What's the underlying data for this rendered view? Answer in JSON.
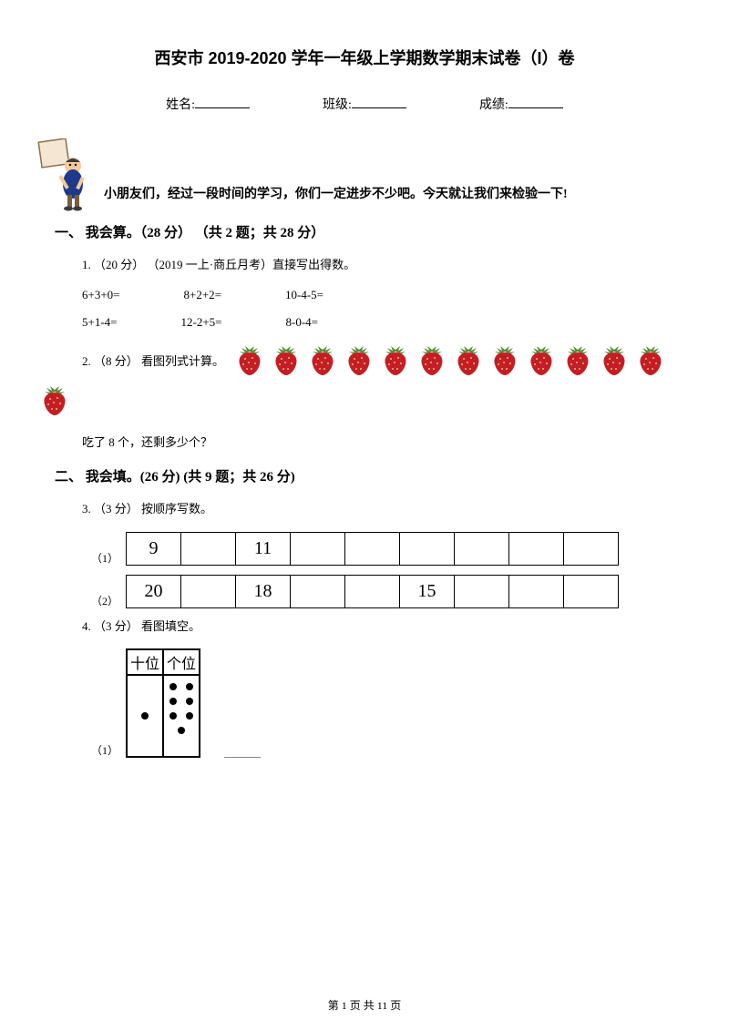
{
  "title": "西安市 2019-2020 学年一年级上学期数学期末试卷（I）卷",
  "info": {
    "name_label": "姓名:",
    "class_label": "班级:",
    "score_label": "成绩:"
  },
  "intro": "小朋友们，经过一段时间的学习，你们一定进步不少吧。今天就让我们来检验一下!",
  "section1": {
    "heading": "一、 我会算。（28 分） （共 2 题；共 28 分）",
    "q1": {
      "label": "1. （20 分） （2019 一上·商丘月考）直接写出得数。",
      "row1": [
        "6+3+0=",
        "8+2+2=",
        "10-4-5="
      ],
      "row2": [
        "5+1-4=",
        "12-2+5=",
        "8-0-4="
      ]
    },
    "q2": {
      "label": "2. （8 分）  看图列式计算。",
      "strawberry_count": 13,
      "sub": "吃了 8 个，还剩多少个？"
    }
  },
  "section2": {
    "heading": "二、 我会填。(26 分)  (共 9 题；共 26 分)",
    "q3": {
      "label": "3. （3 分） 按顺序写数。",
      "seq1": [
        "9",
        "",
        "11",
        "",
        "",
        "",
        "",
        "",
        ""
      ],
      "sub1": "（1）",
      "seq2": [
        "20",
        "",
        "18",
        "",
        "",
        "15",
        "",
        "",
        ""
      ],
      "sub2": "（2）"
    },
    "q4": {
      "label": "4. （3 分） 看图填空。",
      "pv_headers": [
        "十位",
        "个位"
      ],
      "tens_dots": 1,
      "ones_dots": 7,
      "sub1": "（1）"
    }
  },
  "footer": "第 1 页 共 11 页",
  "colors": {
    "strawberry_body": "#c41e24",
    "strawberry_leaf": "#5a8c3a",
    "mascot_skin": "#f5c99b",
    "mascot_suit": "#1e3a8a",
    "mascot_board": "#f5e6d3",
    "background": "#ffffff",
    "text": "#000000"
  }
}
